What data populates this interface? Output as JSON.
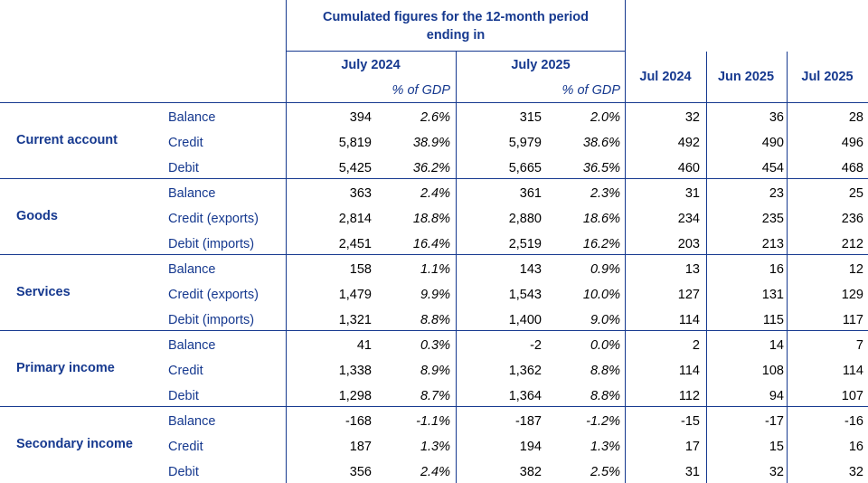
{
  "header": {
    "group_title_line1": "Cumulated figures for the 12-month period",
    "group_title_line2": "ending in",
    "periods": [
      "July 2024",
      "July 2025"
    ],
    "pct_label": "% of GDP",
    "monthly": [
      "Jul 2024",
      "Jun 2025",
      "Jul 2025"
    ]
  },
  "sections": [
    {
      "name": "Current account",
      "rows": [
        {
          "label": "Balance",
          "v": [
            "394",
            "2.6%",
            "315",
            "2.0%",
            "32",
            "36",
            "28"
          ]
        },
        {
          "label": "Credit",
          "v": [
            "5,819",
            "38.9%",
            "5,979",
            "38.6%",
            "492",
            "490",
            "496"
          ]
        },
        {
          "label": "Debit",
          "v": [
            "5,425",
            "36.2%",
            "5,665",
            "36.5%",
            "460",
            "454",
            "468"
          ]
        }
      ]
    },
    {
      "name": "Goods",
      "rows": [
        {
          "label": "Balance",
          "v": [
            "363",
            "2.4%",
            "361",
            "2.3%",
            "31",
            "23",
            "25"
          ]
        },
        {
          "label": "Credit (exports)",
          "v": [
            "2,814",
            "18.8%",
            "2,880",
            "18.6%",
            "234",
            "235",
            "236"
          ]
        },
        {
          "label": "Debit (imports)",
          "v": [
            "2,451",
            "16.4%",
            "2,519",
            "16.2%",
            "203",
            "213",
            "212"
          ]
        }
      ]
    },
    {
      "name": "Services",
      "rows": [
        {
          "label": "Balance",
          "v": [
            "158",
            "1.1%",
            "143",
            "0.9%",
            "13",
            "16",
            "12"
          ]
        },
        {
          "label": "Credit (exports)",
          "v": [
            "1,479",
            "9.9%",
            "1,543",
            "10.0%",
            "127",
            "131",
            "129"
          ]
        },
        {
          "label": "Debit (imports)",
          "v": [
            "1,321",
            "8.8%",
            "1,400",
            "9.0%",
            "114",
            "115",
            "117"
          ]
        }
      ]
    },
    {
      "name": "Primary income",
      "rows": [
        {
          "label": "Balance",
          "v": [
            "41",
            "0.3%",
            "-2",
            "0.0%",
            "2",
            "14",
            "7"
          ]
        },
        {
          "label": "Credit",
          "v": [
            "1,338",
            "8.9%",
            "1,362",
            "8.8%",
            "114",
            "108",
            "114"
          ]
        },
        {
          "label": "Debit",
          "v": [
            "1,298",
            "8.7%",
            "1,364",
            "8.8%",
            "112",
            "94",
            "107"
          ]
        }
      ]
    },
    {
      "name": "Secondary income",
      "rows": [
        {
          "label": "Balance",
          "v": [
            "-168",
            "-1.1%",
            "-187",
            "-1.2%",
            "-15",
            "-17",
            "-16"
          ]
        },
        {
          "label": "Credit",
          "v": [
            "187",
            "1.3%",
            "194",
            "1.3%",
            "17",
            "15",
            "16"
          ]
        },
        {
          "label": "Debit",
          "v": [
            "356",
            "2.4%",
            "382",
            "2.5%",
            "31",
            "32",
            "32"
          ]
        }
      ]
    }
  ]
}
